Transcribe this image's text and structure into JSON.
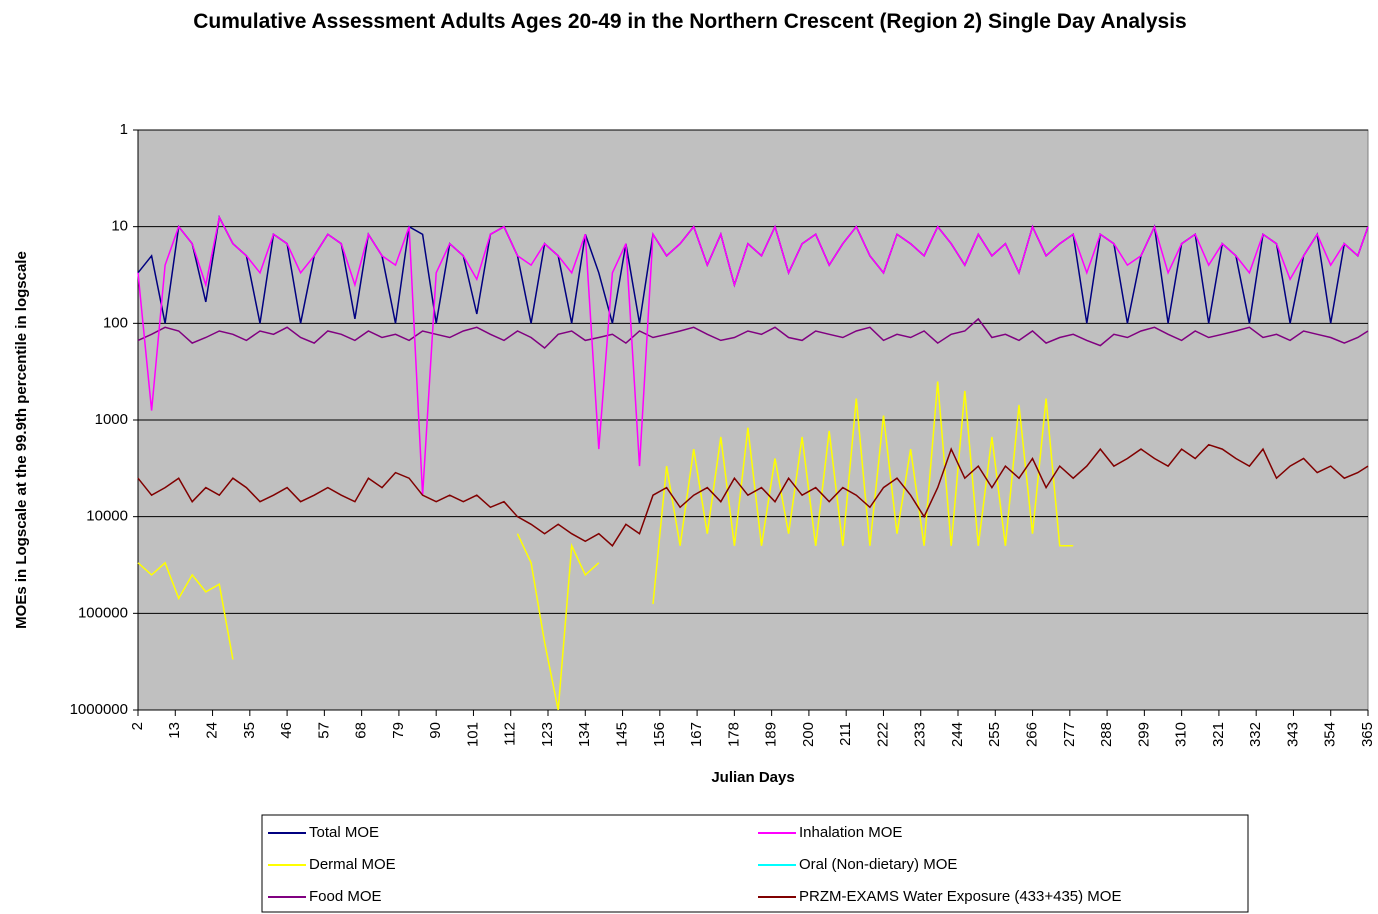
{
  "chart_data": {
    "type": "line",
    "title": "Cumulative Assessment Adults Ages 20-49 in the Northern Crescent (Region 2) Single Day Analysis",
    "x_label": "Julian Days",
    "y_label": "MOEs in Logscale at the 99.9th percentile in logscale",
    "log_scale": true,
    "y_reversed": true,
    "grid": true,
    "legend": "bottom",
    "xlim": [
      2,
      365
    ],
    "xticks": [
      2,
      13,
      24,
      35,
      46,
      57,
      68,
      79,
      90,
      101,
      112,
      123,
      134,
      145,
      156,
      167,
      178,
      189,
      200,
      211,
      222,
      233,
      244,
      255,
      266,
      277,
      288,
      299,
      310,
      321,
      332,
      343,
      354,
      365
    ],
    "ylim": [
      1,
      1000000
    ],
    "yticks": [
      1,
      10,
      100,
      1000,
      10000,
      100000,
      1000000
    ],
    "x": [
      2,
      6,
      10,
      14,
      18,
      22,
      26,
      30,
      34,
      38,
      42,
      46,
      50,
      54,
      58,
      62,
      66,
      70,
      74,
      78,
      82,
      86,
      90,
      94,
      98,
      102,
      106,
      110,
      114,
      118,
      122,
      126,
      130,
      134,
      138,
      142,
      146,
      150,
      154,
      158,
      162,
      166,
      170,
      174,
      178,
      182,
      186,
      190,
      194,
      198,
      202,
      206,
      210,
      214,
      218,
      222,
      226,
      230,
      234,
      238,
      242,
      246,
      250,
      254,
      258,
      262,
      266,
      270,
      274,
      278,
      282,
      286,
      290,
      294,
      298,
      302,
      306,
      310,
      314,
      318,
      322,
      326,
      330,
      334,
      338,
      342,
      346,
      350,
      354,
      358,
      362,
      365
    ],
    "series": [
      {
        "name": "Total MOE",
        "color": "#000080",
        "values": [
          30,
          20,
          100,
          10,
          15,
          60,
          8,
          15,
          20,
          100,
          12,
          15,
          100,
          20,
          12,
          15,
          90,
          12,
          20,
          100,
          10,
          12,
          100,
          15,
          20,
          80,
          12,
          10,
          20,
          100,
          15,
          20,
          100,
          12,
          30,
          100,
          15,
          100,
          12,
          20,
          15,
          10,
          25,
          12,
          40,
          15,
          20,
          10,
          30,
          15,
          12,
          25,
          15,
          10,
          20,
          30,
          12,
          15,
          20,
          10,
          15,
          25,
          12,
          20,
          15,
          30,
          10,
          20,
          15,
          12,
          100,
          12,
          15,
          100,
          20,
          10,
          100,
          15,
          12,
          100,
          15,
          20,
          100,
          12,
          15,
          100,
          20,
          12,
          100,
          15,
          20,
          10
        ]
      },
      {
        "name": "Dermal MOE",
        "color": "#ffff00",
        "values": [
          30000,
          40000,
          30000,
          70000,
          40000,
          60000,
          50000,
          300000,
          null,
          null,
          null,
          null,
          null,
          null,
          null,
          null,
          null,
          null,
          null,
          null,
          null,
          null,
          null,
          null,
          null,
          null,
          null,
          null,
          15000,
          30000,
          200000,
          1000000,
          20000,
          40000,
          30000,
          null,
          2000,
          null,
          80000,
          3000,
          20000,
          2000,
          15000,
          1500,
          20000,
          1200,
          20000,
          2500,
          15000,
          1500,
          20000,
          1300,
          20000,
          600,
          20000,
          900,
          15000,
          2000,
          20000,
          400,
          20000,
          500,
          20000,
          1500,
          20000,
          700,
          15000,
          600,
          20000,
          20000,
          null,
          null,
          null,
          null,
          null,
          null,
          null,
          null,
          null,
          null,
          null,
          null,
          null,
          null,
          null,
          null,
          null,
          null,
          null,
          null,
          null,
          null
        ]
      },
      {
        "name": "Food MOE",
        "color": "#800080",
        "values": [
          150,
          130,
          110,
          120,
          160,
          140,
          120,
          130,
          150,
          120,
          130,
          110,
          140,
          160,
          120,
          130,
          150,
          120,
          140,
          130,
          150,
          120,
          130,
          140,
          120,
          110,
          130,
          150,
          120,
          140,
          180,
          130,
          120,
          150,
          140,
          130,
          160,
          120,
          140,
          130,
          120,
          110,
          130,
          150,
          140,
          120,
          130,
          110,
          140,
          150,
          120,
          130,
          140,
          120,
          110,
          150,
          130,
          140,
          120,
          160,
          130,
          120,
          90,
          140,
          130,
          150,
          120,
          160,
          140,
          130,
          150,
          170,
          130,
          140,
          120,
          110,
          130,
          150,
          120,
          140,
          130,
          120,
          110,
          140,
          130,
          150,
          120,
          130,
          140,
          160,
          140,
          120
        ]
      },
      {
        "name": "Inhalation MOE",
        "color": "#ff00ff",
        "values": [
          30,
          800,
          25,
          10,
          15,
          40,
          8,
          15,
          20,
          30,
          12,
          15,
          30,
          20,
          12,
          15,
          40,
          12,
          20,
          25,
          10,
          6000,
          30,
          15,
          20,
          35,
          12,
          10,
          20,
          25,
          15,
          20,
          30,
          12,
          2000,
          30,
          15,
          3000,
          12,
          20,
          15,
          10,
          25,
          12,
          40,
          15,
          20,
          10,
          30,
          15,
          12,
          25,
          15,
          10,
          20,
          30,
          12,
          15,
          20,
          10,
          15,
          25,
          12,
          20,
          15,
          30,
          10,
          20,
          15,
          12,
          30,
          12,
          15,
          25,
          20,
          10,
          30,
          15,
          12,
          25,
          15,
          20,
          30,
          12,
          15,
          35,
          20,
          12,
          25,
          15,
          20,
          10
        ]
      },
      {
        "name": "Oral (Non-dietary) MOE",
        "color": "#00ffff",
        "values": [
          null,
          null,
          null,
          null,
          null,
          null,
          null,
          null,
          null,
          null,
          null,
          null,
          null,
          null,
          null,
          null,
          null,
          null,
          null,
          null,
          null,
          null,
          null,
          null,
          null,
          null,
          null,
          null,
          null,
          null,
          null,
          null,
          null,
          null,
          null,
          null,
          null,
          null,
          null,
          null,
          null,
          null,
          null,
          null,
          null,
          null,
          null,
          null,
          null,
          null,
          null,
          null,
          null,
          null,
          null,
          null,
          null,
          null,
          null,
          null,
          null,
          null,
          null,
          null,
          null,
          null,
          null,
          null,
          null,
          null,
          null,
          null,
          null,
          null,
          null,
          null,
          null,
          null,
          null,
          null,
          null,
          null,
          null,
          null,
          null,
          null,
          null,
          null,
          null,
          null,
          null,
          null
        ]
      },
      {
        "name": "PRZM-EXAMS Water Exposure (433+435) MOE",
        "color": "#800000",
        "values": [
          4000,
          6000,
          5000,
          4000,
          7000,
          5000,
          6000,
          4000,
          5000,
          7000,
          6000,
          5000,
          7000,
          6000,
          5000,
          6000,
          7000,
          4000,
          5000,
          3500,
          4000,
          6000,
          7000,
          6000,
          7000,
          6000,
          8000,
          7000,
          10000,
          12000,
          15000,
          12000,
          15000,
          18000,
          15000,
          20000,
          12000,
          15000,
          6000,
          5000,
          8000,
          6000,
          5000,
          7000,
          4000,
          6000,
          5000,
          7000,
          4000,
          6000,
          5000,
          7000,
          5000,
          6000,
          8000,
          5000,
          4000,
          6000,
          10000,
          5000,
          2000,
          4000,
          3000,
          5000,
          3000,
          4000,
          2500,
          5000,
          3000,
          4000,
          3000,
          2000,
          3000,
          2500,
          2000,
          2500,
          3000,
          2000,
          2500,
          1800,
          2000,
          2500,
          3000,
          2000,
          4000,
          3000,
          2500,
          3500,
          3000,
          4000,
          3500,
          3000
        ]
      }
    ]
  }
}
